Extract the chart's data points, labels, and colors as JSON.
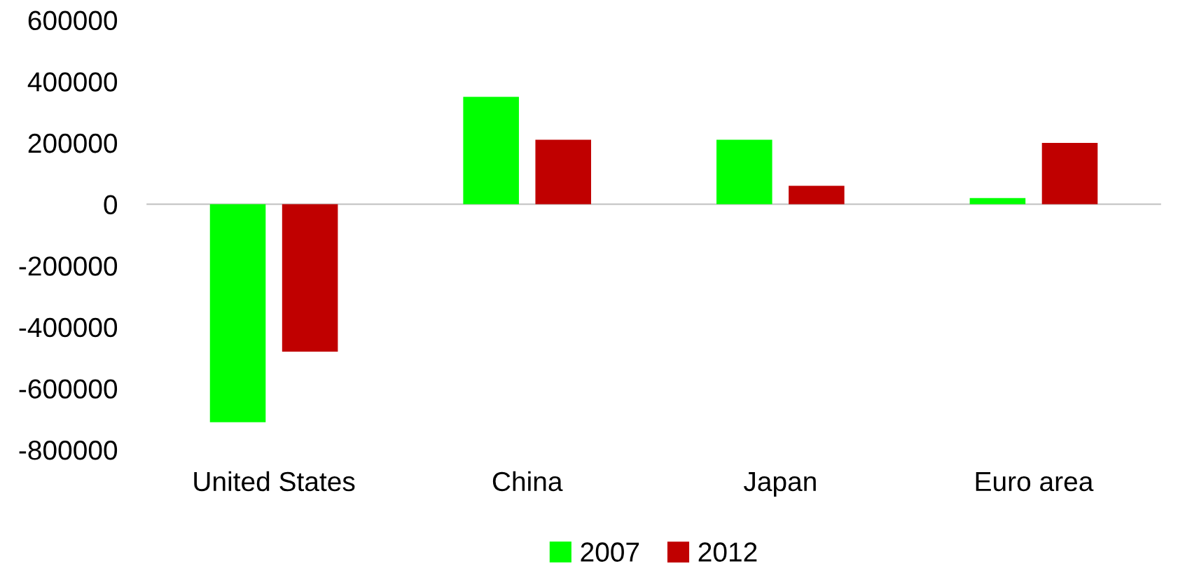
{
  "chart_data": {
    "type": "bar",
    "categories": [
      "United States",
      "China",
      "Japan",
      "Euro area"
    ],
    "series": [
      {
        "name": "2007",
        "color": "#00ff00",
        "values": [
          -710000,
          350000,
          210000,
          20000
        ]
      },
      {
        "name": "2012",
        "color": "#c00000",
        "values": [
          -480000,
          210000,
          60000,
          200000
        ]
      }
    ],
    "ylim": [
      -800000,
      600000
    ],
    "yticks": [
      -800000,
      -600000,
      -400000,
      -200000,
      0,
      200000,
      400000,
      600000
    ],
    "legend": "bottom"
  }
}
